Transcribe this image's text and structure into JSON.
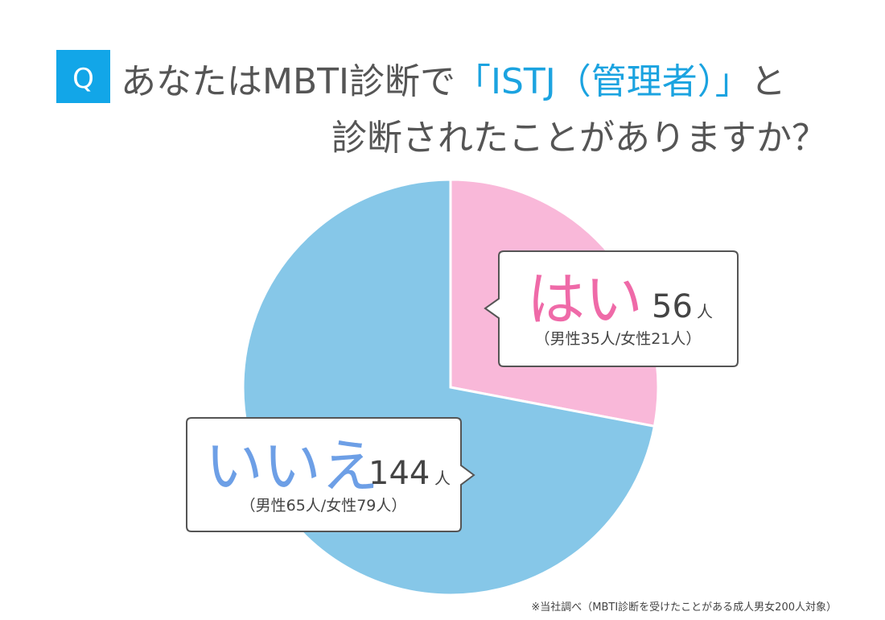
{
  "chart_data": {
    "type": "pie",
    "badge": "Q",
    "title": [
      "あなたはMBTI診断で",
      "「ISTJ（管理者）」",
      "と",
      "診断されたことがありますか？"
    ],
    "categories": [
      "はい",
      "いいえ"
    ],
    "values": [
      56,
      144
    ],
    "colors": [
      "#f9b8d9",
      "#86c7e8"
    ],
    "label_colors": [
      "#ef6aa8",
      "#6d9fe6"
    ],
    "unit": "人",
    "details": [
      "（男性35人/女性21人）",
      "（男性65人/女性79人）"
    ],
    "footnote": "※当社調べ（MBTI診断を受けたことがある成人男女200人対象）"
  }
}
